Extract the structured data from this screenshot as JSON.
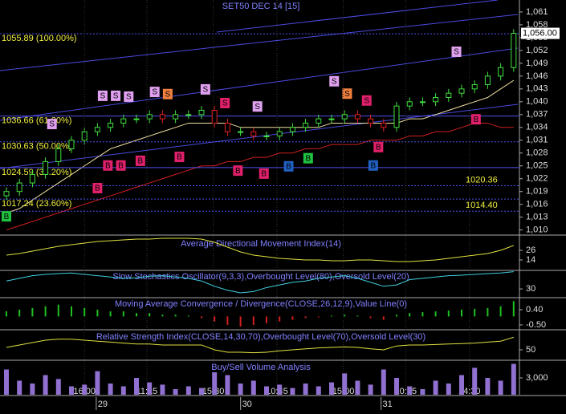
{
  "chart_data": [
    {
      "type": "candlestick",
      "title": "SET50 DEC 14   [15]",
      "open": [
        1018,
        1019,
        1021,
        1023,
        1026,
        1029,
        1031,
        1033,
        1034,
        1035,
        1036,
        1036,
        1037,
        1036,
        1037,
        1037,
        1038,
        1035,
        1033,
        1033,
        1032,
        1032,
        1033,
        1034,
        1035,
        1036,
        1036,
        1037,
        1036,
        1035,
        1034,
        1039,
        1040,
        1040,
        1041,
        1042,
        1043,
        1044,
        1046,
        1048
      ],
      "high": [
        1020,
        1022,
        1024,
        1027,
        1030,
        1032,
        1034,
        1035,
        1036,
        1037,
        1037,
        1038,
        1038,
        1038,
        1038,
        1039,
        1039,
        1036,
        1034,
        1034,
        1033,
        1034,
        1035,
        1036,
        1037,
        1037,
        1038,
        1038,
        1037,
        1036,
        1040,
        1041,
        1041,
        1042,
        1043,
        1044,
        1045,
        1047,
        1049,
        1057
      ],
      "low": [
        1017,
        1018,
        1020,
        1022,
        1025,
        1028,
        1030,
        1032,
        1033,
        1034,
        1035,
        1035,
        1035,
        1035,
        1036,
        1036,
        1034,
        1032,
        1032,
        1031,
        1031,
        1031,
        1032,
        1033,
        1034,
        1035,
        1035,
        1035,
        1034,
        1033,
        1033,
        1038,
        1039,
        1039,
        1040,
        1041,
        1042,
        1043,
        1045,
        1047
      ],
      "close": [
        1019,
        1021,
        1023,
        1026,
        1029,
        1031,
        1033,
        1034,
        1035,
        1036,
        1036,
        1037,
        1036,
        1037,
        1037,
        1038,
        1035,
        1033,
        1033,
        1032,
        1032,
        1033,
        1034,
        1035,
        1036,
        1036,
        1037,
        1036,
        1035,
        1034,
        1039,
        1040,
        1040,
        1041,
        1042,
        1043,
        1044,
        1046,
        1048,
        1056
      ],
      "up_color": "#40e040",
      "down_color": "#e02020",
      "lines": [
        {
          "color": "#f0e0a0",
          "values": [
            1014,
            1015,
            1017,
            1019,
            1021,
            1023,
            1025,
            1027,
            1029,
            1030,
            1031,
            1032,
            1033,
            1034,
            1035,
            1035,
            1035,
            1035,
            1034,
            1034,
            1034,
            1034,
            1034,
            1034,
            1034,
            1035,
            1035,
            1035,
            1035,
            1035,
            1035,
            1036,
            1036,
            1037,
            1038,
            1039,
            1040,
            1041,
            1043,
            1045
          ]
        },
        {
          "color": "#d02020",
          "values": [
            1010,
            1011,
            1012,
            1013,
            1014,
            1015,
            1016,
            1017,
            1018,
            1019,
            1020,
            1021,
            1022,
            1023,
            1024,
            1025,
            1025,
            1026,
            1026,
            1027,
            1027,
            1028,
            1028,
            1029,
            1029,
            1030,
            1030,
            1030,
            1031,
            1031,
            1031,
            1032,
            1032,
            1033,
            1033,
            1034,
            1035,
            1035,
            1034,
            1034
          ]
        }
      ],
      "ylim": [
        1009,
        1063.8
      ],
      "yticks": [
        {
          "value": 1010,
          "label": "1,010"
        },
        {
          "value": 1013,
          "label": "1,013"
        },
        {
          "value": 1016,
          "label": "1,016"
        },
        {
          "value": 1019,
          "label": "1,019"
        },
        {
          "value": 1022,
          "label": "1,022"
        },
        {
          "value": 1025,
          "label": "1,025"
        },
        {
          "value": 1028,
          "label": "1,028"
        },
        {
          "value": 1031,
          "label": "1,031"
        },
        {
          "value": 1034,
          "label": "1,034"
        },
        {
          "value": 1037,
          "label": "1,037"
        },
        {
          "value": 1040,
          "label": "1,040"
        },
        {
          "value": 1043,
          "label": "1,043"
        },
        {
          "value": 1046,
          "label": "1,046"
        },
        {
          "value": 1049,
          "label": "1,049"
        },
        {
          "value": 1052,
          "label": "1,052"
        },
        {
          "value": 1055,
          "label": "1,055"
        },
        {
          "value": 1058,
          "label": "1,058"
        },
        {
          "value": 1061,
          "label": "1,061"
        }
      ],
      "fib_levels": [
        {
          "value": 1055.89,
          "label": "1055.89 (100.00%)"
        },
        {
          "value": 1036.66,
          "label": "1036.66 (61.80%)"
        },
        {
          "value": 1030.63,
          "label": "1030.63 (50.00%)"
        },
        {
          "value": 1024.59,
          "label": "1024.59 (38.20%)"
        },
        {
          "value": 1017.24,
          "label": "1017.24 (23.60%)"
        }
      ],
      "price_levels": [
        {
          "value": 1020.36,
          "label": "1020.36"
        },
        {
          "value": 1014.4,
          "label": "1014.40"
        }
      ],
      "last_price": {
        "value": 1056,
        "label": "1,056.00"
      },
      "signals": [
        {
          "label": "B",
          "color": "#20c040",
          "x": 0,
          "y": 1013.1
        },
        {
          "label": "S",
          "color": "#e0a0f0",
          "x": 3.5,
          "y": 1034.7
        },
        {
          "label": "B",
          "color": "#e0206a",
          "x": 7,
          "y": 1019.7
        },
        {
          "label": "B",
          "color": "#e0206a",
          "x": 7.8,
          "y": 1025
        },
        {
          "label": "B",
          "color": "#e0206a",
          "x": 8.8,
          "y": 1025
        },
        {
          "label": "B",
          "color": "#e0206a",
          "x": 10.3,
          "y": 1026.1
        },
        {
          "label": "S",
          "color": "#e0a0f0",
          "x": 7.4,
          "y": 1041.3
        },
        {
          "label": "S",
          "color": "#e0a0f0",
          "x": 8.4,
          "y": 1041.3
        },
        {
          "label": "S",
          "color": "#e0a0f0",
          "x": 9.4,
          "y": 1041.1
        },
        {
          "label": "S",
          "color": "#e0a0f0",
          "x": 11.4,
          "y": 1042.2
        },
        {
          "label": "S",
          "color": "#f08040",
          "x": 12.4,
          "y": 1041.7
        },
        {
          "label": "B",
          "color": "#e0206a",
          "x": 13.3,
          "y": 1027
        },
        {
          "label": "S",
          "color": "#e0a0f0",
          "x": 15.3,
          "y": 1042.8
        },
        {
          "label": "S",
          "color": "#e0206a",
          "x": 16.8,
          "y": 1039.6
        },
        {
          "label": "B",
          "color": "#e0206a",
          "x": 17.8,
          "y": 1023.8
        },
        {
          "label": "S",
          "color": "#e0a0f0",
          "x": 19.3,
          "y": 1038.8
        },
        {
          "label": "B",
          "color": "#e0206a",
          "x": 19.8,
          "y": 1023.1
        },
        {
          "label": "B",
          "color": "#2060c0",
          "x": 21.7,
          "y": 1024.8
        },
        {
          "label": "B",
          "color": "#20c040",
          "x": 23.2,
          "y": 1026.7
        },
        {
          "label": "S",
          "color": "#e0a0f0",
          "x": 25.2,
          "y": 1044.7
        },
        {
          "label": "S",
          "color": "#f08040",
          "x": 26.2,
          "y": 1041.8
        },
        {
          "label": "S",
          "color": "#e0206a",
          "x": 27.7,
          "y": 1040.2
        },
        {
          "label": "B",
          "color": "#2060c0",
          "x": 28.2,
          "y": 1025
        },
        {
          "label": "B",
          "color": "#e0206a",
          "x": 28.6,
          "y": 1029.3
        },
        {
          "label": "S",
          "color": "#e0a0f0",
          "x": 34.6,
          "y": 1051.6
        },
        {
          "label": "B",
          "color": "#e0206a",
          "x": 36.1,
          "y": 1035.8
        }
      ],
      "time_labels": {
        "labels": [
          "16:00",
          "11:15",
          "15:30",
          "10:45",
          "15:00",
          "10:15",
          "14:30"
        ],
        "x": [
          6,
          10.8,
          15.9,
          20.8,
          25.9,
          30.7,
          35.6
        ]
      },
      "date_labels": {
        "labels": [
          "29",
          "30",
          "31"
        ],
        "x": [
          7.4,
          18.5,
          29.3
        ]
      }
    },
    {
      "type": "line",
      "title": "Average Directional Movement Index(14)",
      "ylim": [
        2,
        42
      ],
      "yticks": [
        14,
        26
      ],
      "color": "#e0e040",
      "values": [
        20,
        22,
        25,
        28,
        31,
        33,
        35,
        37,
        38,
        39,
        40,
        40,
        41,
        41,
        41,
        40,
        36,
        30,
        24,
        20,
        18,
        16,
        15,
        14,
        14,
        13,
        13,
        14,
        14,
        13,
        12,
        12,
        13,
        14,
        16,
        18,
        20,
        22,
        26,
        32
      ]
    },
    {
      "type": "line",
      "title": "Slow Stochastics Oscillator(9,3,3),Overbought Level(80),Oversold Level(20)",
      "ylim": [
        0,
        100
      ],
      "yticks": [
        30
      ],
      "color": "#40d0e0",
      "values": [
        60,
        70,
        80,
        85,
        88,
        90,
        85,
        80,
        75,
        70,
        72,
        78,
        80,
        75,
        70,
        60,
        40,
        25,
        15,
        20,
        35,
        45,
        55,
        60,
        70,
        75,
        80,
        70,
        55,
        40,
        45,
        65,
        70,
        75,
        80,
        82,
        85,
        88,
        90,
        95
      ]
    },
    {
      "type": "histogram",
      "title": "Moving Average Convergence / Divergence(CLOSE,26,12,9),Value Line(0)",
      "ylim": [
        -0.74,
        1.11
      ],
      "yticks": [
        {
          "value": -0.5,
          "label": "-0.50"
        },
        {
          "value": 0.4,
          "label": "0.40"
        }
      ],
      "up_color": "#20c020",
      "down_color": "#d02020",
      "values": [
        0.3,
        0.4,
        0.5,
        0.6,
        0.7,
        0.6,
        0.5,
        0.4,
        0.3,
        0.3,
        0.2,
        0.2,
        0.1,
        0.1,
        0.05,
        -0.1,
        -0.3,
        -0.5,
        -0.6,
        -0.5,
        -0.4,
        -0.3,
        -0.2,
        -0.1,
        -0.05,
        0.05,
        0.1,
        0.05,
        -0.1,
        -0.2,
        0.1,
        0.2,
        0.25,
        0.3,
        0.35,
        0.4,
        0.45,
        0.5,
        0.6,
        0.9
      ]
    },
    {
      "type": "line",
      "title": "Relative Strength Index(CLOSE,14,30,70),Overbought Level(70),Oversold Level(30)",
      "ylim": [
        30,
        90
      ],
      "yticks": [
        50
      ],
      "color": "#e0e040",
      "values": [
        55,
        60,
        65,
        70,
        72,
        72,
        70,
        68,
        66,
        64,
        62,
        62,
        60,
        60,
        60,
        60,
        50,
        45,
        45,
        44,
        45,
        48,
        50,
        52,
        54,
        55,
        56,
        55,
        52,
        50,
        58,
        60,
        60,
        61,
        62,
        63,
        64,
        66,
        68,
        76
      ]
    },
    {
      "type": "bar",
      "title": "Buy/Sell Volume Analysis",
      "ylim": [
        0,
        6000
      ],
      "yticks": [
        {
          "value": 3000,
          "label": "3,000"
        }
      ],
      "color": "#9070d0",
      "values": [
        4500,
        2500,
        2000,
        3500,
        2800,
        1500,
        1800,
        4200,
        2000,
        1500,
        3000,
        2200,
        1800,
        1000,
        1500,
        1200,
        4000,
        3500,
        2000,
        2500,
        1500,
        1800,
        1200,
        2000,
        1500,
        2200,
        3800,
        2500,
        1800,
        4500,
        3000,
        1500,
        1000,
        2500,
        2000,
        3500,
        4800,
        3000,
        2500,
        5500
      ]
    }
  ]
}
